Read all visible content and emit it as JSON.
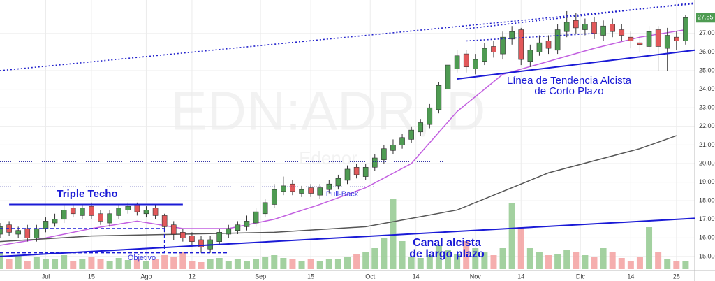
{
  "chart_data": {
    "type": "candlestick",
    "watermark": "EDN:ADR, D",
    "watermark_sub": "Edenor",
    "xlim": [
      0,
      152
    ],
    "xticks": [
      {
        "value": 10,
        "label": "Jul"
      },
      {
        "value": 20,
        "label": "15"
      },
      {
        "value": 32,
        "label": "Ago"
      },
      {
        "value": 42,
        "label": "12"
      },
      {
        "value": 57,
        "label": "Sep"
      },
      {
        "value": 68,
        "label": "15"
      },
      {
        "value": 81,
        "label": "Oct"
      },
      {
        "value": 91,
        "label": "14"
      },
      {
        "value": 104,
        "label": "Nov"
      },
      {
        "value": 114,
        "label": "14"
      },
      {
        "value": 127,
        "label": "Dic"
      },
      {
        "value": 138,
        "label": "14"
      },
      {
        "value": 148,
        "label": "28"
      }
    ],
    "ylim": [
      14.32,
      28.8
    ],
    "yticks": [
      {
        "value": 15,
        "label": "15.00"
      },
      {
        "value": 16,
        "label": "16.00"
      },
      {
        "value": 17,
        "label": "17.00"
      },
      {
        "value": 18,
        "label": "18.00"
      },
      {
        "value": 19,
        "label": "19.00"
      },
      {
        "value": 20,
        "label": "20.00"
      },
      {
        "value": 21,
        "label": "21.00"
      },
      {
        "value": 22,
        "label": "22.00"
      },
      {
        "value": 23,
        "label": "23.00"
      },
      {
        "value": 24,
        "label": "24.00"
      },
      {
        "value": 25,
        "label": "25.00"
      },
      {
        "value": 26,
        "label": "26.00"
      },
      {
        "value": 27,
        "label": "27.00"
      }
    ],
    "grid": true,
    "last_price": 27.85,
    "up_color": "#4e9b52",
    "down_color": "#e2585a",
    "candles": {
      "x": [
        0,
        2,
        4,
        6,
        8,
        10,
        12,
        14,
        16,
        18,
        20,
        22,
        24,
        26,
        28,
        30,
        32,
        34,
        36,
        38,
        40,
        42,
        44,
        46,
        48,
        50,
        52,
        54,
        56,
        58,
        60,
        62,
        64,
        66,
        68,
        70,
        72,
        74,
        76,
        78,
        80,
        82,
        84,
        86,
        88,
        90,
        92,
        94,
        96,
        98,
        100,
        102,
        104,
        106,
        108,
        110,
        112,
        114,
        116,
        118,
        120,
        122,
        124,
        126,
        128,
        130,
        132,
        134,
        136,
        138,
        140,
        142,
        144,
        146,
        148,
        150
      ],
      "open": [
        16.2,
        16.7,
        16.2,
        16.5,
        16.0,
        16.5,
        16.8,
        17.0,
        17.6,
        17.2,
        17.7,
        17.3,
        16.8,
        17.2,
        17.5,
        17.8,
        17.3,
        17.6,
        17.2,
        16.7,
        16.3,
        16.1,
        15.9,
        15.4,
        15.8,
        16.2,
        16.4,
        16.6,
        16.8,
        17.3,
        17.8,
        18.5,
        18.9,
        18.4,
        18.7,
        18.3,
        18.6,
        18.8,
        19.1,
        19.8,
        19.3,
        19.8,
        20.2,
        20.7,
        21.0,
        21.3,
        21.7,
        22.1,
        22.9,
        24.0,
        25.1,
        25.9,
        25.1,
        25.5,
        26.3,
        25.9,
        26.7,
        27.2,
        25.5,
        26.0,
        26.6,
        26.1,
        27.1,
        27.7,
        27.2,
        27.6,
        26.9,
        27.5,
        27.2,
        26.8,
        26.5,
        26.3,
        27.2,
        26.2,
        26.8,
        26.6
      ],
      "high": [
        16.8,
        16.9,
        16.6,
        16.7,
        16.7,
        17.1,
        17.3,
        17.8,
        17.8,
        17.8,
        17.9,
        17.5,
        17.5,
        17.8,
        17.9,
        17.9,
        17.7,
        17.8,
        17.3,
        16.9,
        16.5,
        16.3,
        16.1,
        16.1,
        16.5,
        16.7,
        16.9,
        17.2,
        17.6,
        18.1,
        18.9,
        19.3,
        19.1,
        18.8,
        18.9,
        18.9,
        19.1,
        19.4,
        19.9,
        20.0,
        20.0,
        20.5,
        21.0,
        21.3,
        21.6,
        22.0,
        22.4,
        23.2,
        24.4,
        25.6,
        26.1,
        26.1,
        25.9,
        26.5,
        26.6,
        27.1,
        27.4,
        27.3,
        26.4,
        26.9,
        26.9,
        27.5,
        28.2,
        28.1,
        27.8,
        27.9,
        27.7,
        27.8,
        27.5,
        27.1,
        26.9,
        27.4,
        27.4,
        27.3,
        27.1,
        28.0
      ],
      "low": [
        16.0,
        16.1,
        16.0,
        15.8,
        15.8,
        16.3,
        16.6,
        16.8,
        17.1,
        17.0,
        17.0,
        16.7,
        16.6,
        17.0,
        17.3,
        17.2,
        17.1,
        17.0,
        16.3,
        15.9,
        15.8,
        15.5,
        15.2,
        15.2,
        15.6,
        16.0,
        16.2,
        16.4,
        16.6,
        17.1,
        17.6,
        18.3,
        18.3,
        18.2,
        18.2,
        18.1,
        18.4,
        18.6,
        18.9,
        19.2,
        19.1,
        19.6,
        20.0,
        20.5,
        20.8,
        21.1,
        21.5,
        21.9,
        22.7,
        23.8,
        24.9,
        24.9,
        24.8,
        25.3,
        25.7,
        25.6,
        26.4,
        25.3,
        25.2,
        25.8,
        25.9,
        25.9,
        26.8,
        27.0,
        26.9,
        26.7,
        26.6,
        26.8,
        26.6,
        26.2,
        26.0,
        26.0,
        25.0,
        25.0,
        26.1,
        26.4
      ],
      "close": [
        16.6,
        16.3,
        16.4,
        16.0,
        16.5,
        16.9,
        17.0,
        17.5,
        17.3,
        17.6,
        17.2,
        16.9,
        17.3,
        17.6,
        17.7,
        17.4,
        17.5,
        17.2,
        16.6,
        16.2,
        16.0,
        15.8,
        15.5,
        15.9,
        16.3,
        16.5,
        16.7,
        16.9,
        17.4,
        17.9,
        18.6,
        18.8,
        18.5,
        18.6,
        18.4,
        18.7,
        18.9,
        19.2,
        19.7,
        19.4,
        19.8,
        20.3,
        20.8,
        21.0,
        21.4,
        21.8,
        22.2,
        23.0,
        24.2,
        25.3,
        25.8,
        25.2,
        25.6,
        26.2,
        26.0,
        26.8,
        27.1,
        25.6,
        26.1,
        26.5,
        26.2,
        27.2,
        27.6,
        27.3,
        27.5,
        27.0,
        27.4,
        27.1,
        26.9,
        26.6,
        26.4,
        27.1,
        26.3,
        26.9,
        26.6,
        27.85
      ]
    },
    "volume": {
      "ylim": [
        0,
        100
      ],
      "up_color": "#93c98f",
      "down_color": "#f3a0a0",
      "values": [
        25,
        15,
        20,
        12,
        18,
        15,
        14,
        20,
        12,
        15,
        18,
        14,
        12,
        16,
        13,
        15,
        12,
        14,
        20,
        18,
        25,
        12,
        10,
        14,
        16,
        12,
        14,
        12,
        15,
        18,
        20,
        16,
        14,
        12,
        15,
        12,
        14,
        15,
        18,
        22,
        25,
        30,
        45,
        100,
        40,
        18,
        16,
        20,
        35,
        28,
        22,
        40,
        30,
        25,
        20,
        30,
        95,
        60,
        30,
        25,
        20,
        22,
        28,
        25,
        20,
        18,
        30,
        25,
        16,
        12,
        18,
        60,
        25,
        14,
        12,
        12
      ]
    },
    "moving_averages": [
      {
        "color": "#c25fe0",
        "x": [
          0,
          10,
          20,
          30,
          40,
          50,
          60,
          70,
          80,
          90,
          100,
          110,
          120,
          130,
          140,
          150
        ],
        "y": [
          15.6,
          16.0,
          16.5,
          16.9,
          16.5,
          16.5,
          17.0,
          17.8,
          18.7,
          20.0,
          22.8,
          24.8,
          25.5,
          26.2,
          26.8,
          27.2
        ]
      },
      {
        "color": "#555555",
        "x": [
          0,
          20,
          40,
          60,
          80,
          100,
          120,
          140,
          148
        ],
        "y": [
          15.8,
          16.1,
          16.2,
          16.3,
          16.6,
          17.5,
          19.5,
          20.8,
          21.5
        ]
      }
    ],
    "lines": [
      {
        "style": "dotted",
        "color": "#2222cc",
        "x": [
          0,
          152
        ],
        "y": [
          25.0,
          28.6
        ]
      },
      {
        "style": "dotted",
        "color": "#2222cc",
        "x": [
          102,
          152
        ],
        "y": [
          27.25,
          28.65
        ]
      },
      {
        "style": "dotted",
        "color": "#2222cc",
        "x": [
          102,
          130
        ],
        "y": [
          26.6,
          27.0
        ]
      },
      {
        "style": "solid",
        "color": "#1a1ad6",
        "x": [
          2,
          40
        ],
        "y": [
          17.8,
          17.8
        ]
      },
      {
        "style": "solid",
        "color": "#1a1ad6",
        "x": [
          0,
          152
        ],
        "y": [
          15.0,
          17.05
        ]
      },
      {
        "style": "solid",
        "color": "#1a1ad6",
        "x": [
          100,
          152
        ],
        "y": [
          24.55,
          26.1
        ]
      },
      {
        "style": "dotted-thin",
        "color": "#1a1a99",
        "x": [
          0,
          97
        ],
        "y": [
          20.1,
          20.1
        ]
      },
      {
        "style": "dotted-thin",
        "color": "#1a1a99",
        "x": [
          0,
          82
        ],
        "y": [
          18.75,
          18.75
        ]
      },
      {
        "style": "dashed",
        "color": "#1a1ad6",
        "x": [
          0,
          36
        ],
        "y": [
          16.5,
          16.5
        ]
      },
      {
        "style": "dashed",
        "color": "#1a1ad6",
        "x": [
          0,
          50
        ],
        "y": [
          15.2,
          15.2
        ]
      },
      {
        "style": "dashed",
        "color": "#1a1ad6",
        "x": [
          36,
          36
        ],
        "y": [
          16.5,
          15.2
        ]
      }
    ],
    "annotations": [
      {
        "text": "Triple Techo",
        "color": "#1a1ad6"
      },
      {
        "text": "Pull-Back",
        "color": "#3a3ae0"
      },
      {
        "text": "Objetivo",
        "color": "#3a3ae0"
      },
      {
        "text": "Línea de Tendencia Alcista",
        "color": "#1a1ad6"
      },
      {
        "text": "de Corto Plazo",
        "color": "#1a1ad6"
      },
      {
        "text": "Canal alcista",
        "color": "#1a1ad6"
      },
      {
        "text": "de largo plazo",
        "color": "#1a1ad6"
      }
    ]
  }
}
